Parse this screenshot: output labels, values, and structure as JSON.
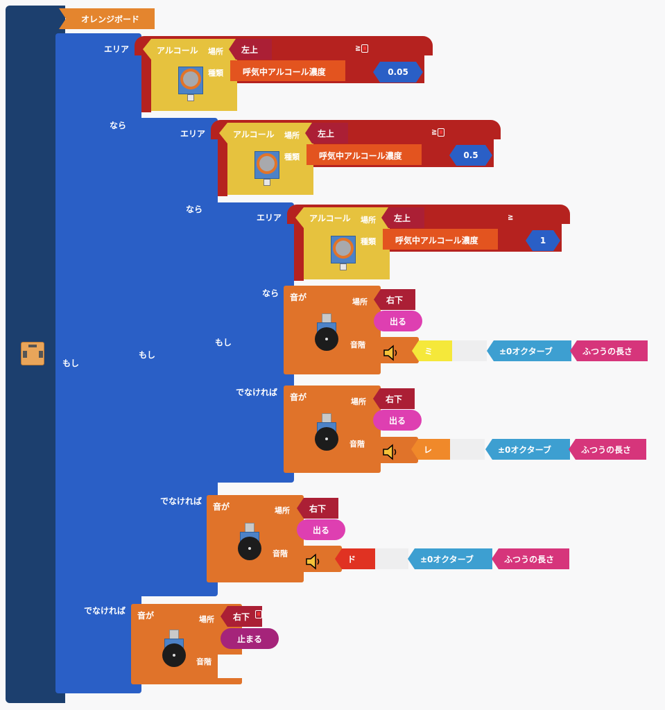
{
  "board": {
    "hat_label": "オレンジボード",
    "board_icon": "board-icon"
  },
  "labels": {
    "area": "エリア",
    "then": "なら",
    "if": "もし",
    "else": "でなければ",
    "alcohol": "アルコール",
    "place": "場所",
    "type": "種類",
    "sound": "音が",
    "scale": "音階"
  },
  "conditions": [
    {
      "place": "左上",
      "type": "呼気中アルコール濃度",
      "compare": "≧",
      "value": "0.05"
    },
    {
      "place": "左上",
      "type": "呼気中アルコール濃度",
      "compare": "≧",
      "value": "0.5"
    },
    {
      "place": "左上",
      "type": "呼気中アルコール濃度",
      "compare": "≧",
      "value": "1"
    }
  ],
  "sounds": [
    {
      "place": "右下",
      "action": "出る",
      "note": "ミ",
      "octave": "±0オクターブ",
      "length": "ふつうの長さ"
    },
    {
      "place": "右下",
      "action": "出る",
      "note": "レ",
      "octave": "±0オクターブ",
      "length": "ふつうの長さ"
    },
    {
      "place": "右下",
      "action": "出る",
      "note": "ド",
      "octave": "±0オクターブ",
      "length": "ふつうの長さ"
    },
    {
      "place": "右下",
      "action": "止まる"
    }
  ],
  "colors": {
    "board": "#1c3f6e",
    "if_block": "#2a5fc6",
    "compare": "#b5221f",
    "sensor": "#e6c23e",
    "sound_block": "#e0732a",
    "note_mi": "#f5e83a",
    "note_re": "#f0892a",
    "note_do": "#e03222",
    "octave": "#3d9fd1",
    "length": "#d6357b"
  }
}
